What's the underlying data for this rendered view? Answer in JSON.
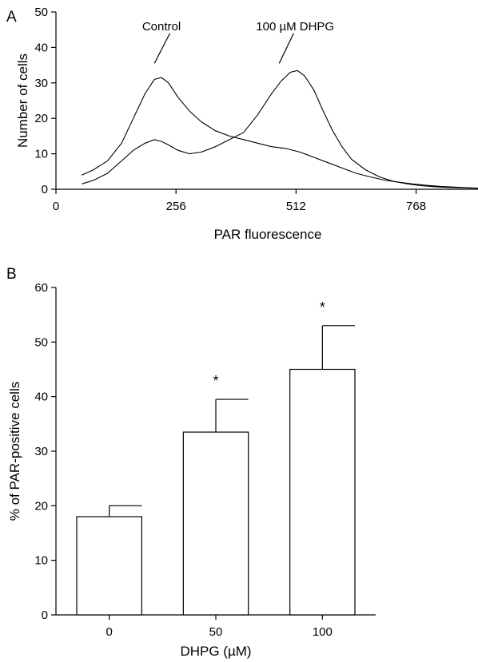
{
  "chart_data": [
    {
      "panel_label": "A",
      "type": "line",
      "xlabel": "PAR fluorescence",
      "ylabel": "Number of cells",
      "xlim": [
        0,
        900
      ],
      "ylim": [
        0,
        50
      ],
      "xticks": [
        0,
        256,
        512,
        768
      ],
      "yticks": [
        0,
        10,
        20,
        30,
        40,
        50
      ],
      "x_tick_labels": [
        "0",
        "256",
        "512",
        "768"
      ],
      "y_tick_labels": [
        "0",
        "10",
        "20",
        "30",
        "40",
        "50"
      ],
      "grid": false,
      "series": [
        {
          "name": "Control",
          "x": [
            55,
            80,
            110,
            140,
            165,
            190,
            210,
            225,
            240,
            260,
            285,
            310,
            340,
            370,
            400,
            430,
            460,
            490,
            520,
            550,
            580,
            610,
            640,
            670,
            700,
            730,
            760,
            790,
            820,
            850,
            880,
            900
          ],
          "y": [
            4,
            5.5,
            8,
            13,
            20,
            27,
            31,
            31.5,
            30,
            26,
            22,
            19,
            16.5,
            15,
            14,
            13,
            12,
            11.5,
            10.5,
            9,
            7.5,
            6,
            4.5,
            3.5,
            2.6,
            2,
            1.5,
            1.1,
            0.8,
            0.6,
            0.4,
            0.3
          ]
        },
        {
          "name": "100 µM DHPG",
          "x": [
            55,
            80,
            110,
            140,
            165,
            190,
            210,
            225,
            240,
            260,
            285,
            310,
            340,
            370,
            400,
            430,
            460,
            480,
            500,
            515,
            530,
            550,
            570,
            590,
            610,
            630,
            660,
            690,
            720,
            750,
            780,
            810,
            840,
            870,
            900
          ],
          "y": [
            1.5,
            2.5,
            4.5,
            8,
            11,
            13,
            14,
            13.5,
            12.5,
            11,
            10,
            10.5,
            12,
            14,
            16,
            21,
            27,
            30.5,
            33,
            33.5,
            32,
            28,
            22,
            16.5,
            12,
            8.5,
            5.5,
            3.5,
            2.2,
            1.5,
            1,
            0.7,
            0.5,
            0.4,
            0.3
          ]
        }
      ],
      "annotations": [
        {
          "text": "Control",
          "label_x": 225,
          "label_y": 46,
          "line_from": [
            243,
            44
          ],
          "line_to": [
            210,
            35.5
          ]
        },
        {
          "text": "100 µM DHPG",
          "label_x": 510,
          "label_y": 46,
          "line_from": [
            507,
            44
          ],
          "line_to": [
            476,
            35.5
          ]
        }
      ]
    },
    {
      "panel_label": "B",
      "type": "bar",
      "xlabel": "DHPG (µM)",
      "ylabel": "% of PAR-positive cells",
      "categories": [
        "0",
        "50",
        "100"
      ],
      "values": [
        18,
        33.5,
        45
      ],
      "errors": [
        2,
        6,
        8
      ],
      "significance": [
        "",
        "*",
        "*"
      ],
      "ylim": [
        0,
        60
      ],
      "yticks": [
        0,
        10,
        20,
        30,
        40,
        50,
        60
      ],
      "y_tick_labels": [
        "0",
        "10",
        "20",
        "30",
        "40",
        "50",
        "60"
      ],
      "grid": false
    }
  ]
}
